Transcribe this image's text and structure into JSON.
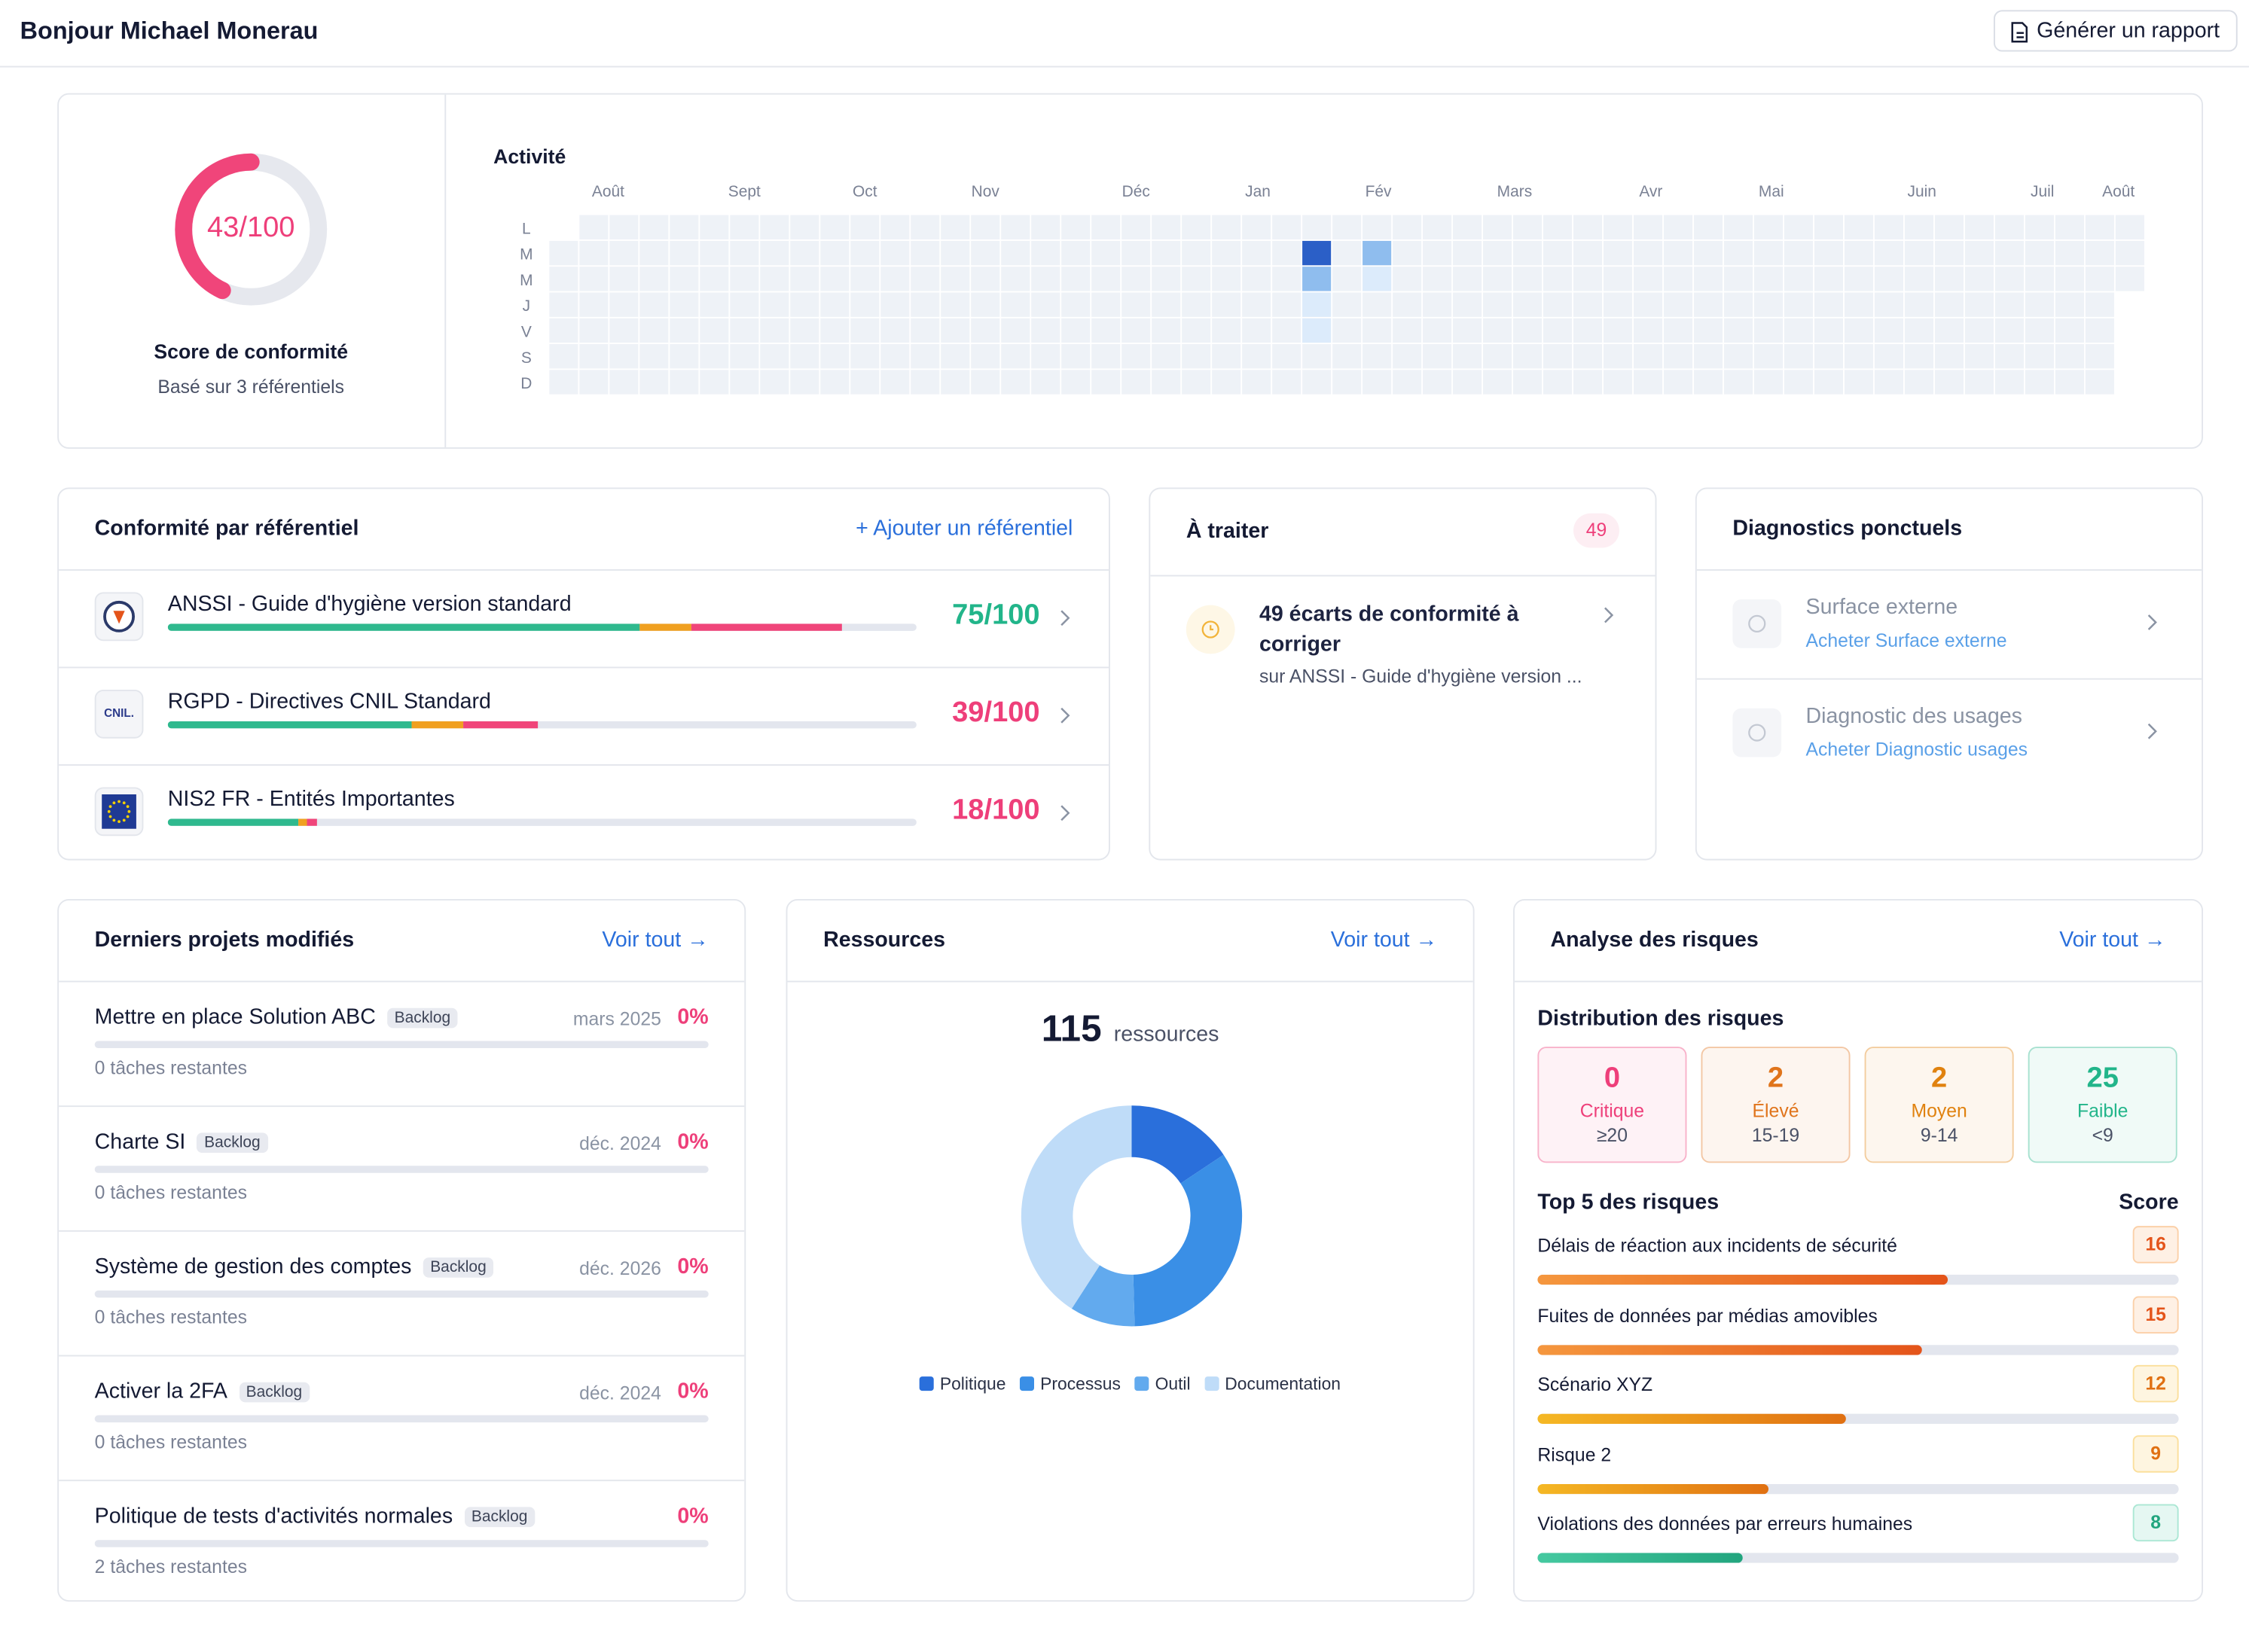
{
  "header": {
    "title": "Bonjour Michael Monerau",
    "button": "Générer un rapport"
  },
  "score": {
    "value": 43,
    "max": 100,
    "label": "43/100",
    "title": "Score de conformité",
    "subtitle": "Basé sur 3 référentiels"
  },
  "activity": {
    "title": "Activité",
    "months": [
      "Août",
      "Sept",
      "Oct",
      "Nov",
      "Déc",
      "Jan",
      "Fév",
      "Mars",
      "Avr",
      "Mai",
      "Juin",
      "Juil",
      "Août"
    ],
    "days": [
      "L",
      "M",
      "M",
      "J",
      "V",
      "S",
      "D"
    ],
    "level_colors": [
      "#eef2f7",
      "#dcebfb",
      "#8fbdee",
      "#5b95e0",
      "#2b5fc7"
    ],
    "cells": [
      {
        "week": 25,
        "day": 1,
        "level": 4
      },
      {
        "week": 25,
        "day": 2,
        "level": 2
      },
      {
        "week": 25,
        "day": 3,
        "level": 1
      },
      {
        "week": 25,
        "day": 4,
        "level": 1
      },
      {
        "week": 27,
        "day": 1,
        "level": 2
      },
      {
        "week": 27,
        "day": 2,
        "level": 1
      }
    ]
  },
  "referentiels": {
    "title": "Conformité par référentiel",
    "action": "+ Ajouter un référentiel",
    "segment_colors": [
      "#2fb98e",
      "#f0a020",
      "#f0457a"
    ],
    "items": [
      {
        "name": "ANSSI - Guide d'hygiène version standard",
        "score": 75,
        "score_label": "75/100",
        "color": "#22b58a",
        "segments": [
          63,
          7,
          20
        ]
      },
      {
        "name": "RGPD - Directives CNIL Standard",
        "logo": "CNIL.",
        "score": 39,
        "score_label": "39/100",
        "color": "#ee3f7a",
        "segments": [
          32.5,
          7,
          10
        ]
      },
      {
        "name": "NIS2 FR - Entités Importantes",
        "score": 18,
        "score_label": "18/100",
        "color": "#ee3f7a",
        "segments": [
          17.5,
          1,
          1.5
        ]
      }
    ]
  },
  "a_traiter": {
    "title": "À traiter",
    "count": 49,
    "item_title": "49 écarts de conformité à corriger",
    "item_subtitle": "sur ANSSI - Guide d'hygiène version ..."
  },
  "diagnostics": {
    "title": "Diagnostics ponctuels",
    "items": [
      {
        "name": "Surface externe",
        "link": "Acheter Surface externe"
      },
      {
        "name": "Diagnostic des usages",
        "link": "Acheter Diagnostic usages"
      }
    ]
  },
  "projects": {
    "title": "Derniers projets modifiés",
    "action": "Voir tout →",
    "items": [
      {
        "name": "Mettre en place Solution ABC",
        "status": "Backlog",
        "date": "mars 2025",
        "progress": 0,
        "progress_label": "0%",
        "remaining": "0 tâches restantes"
      },
      {
        "name": "Charte SI",
        "status": "Backlog",
        "date": "déc. 2024",
        "progress": 0,
        "progress_label": "0%",
        "remaining": "0 tâches restantes"
      },
      {
        "name": "Système de gestion des comptes",
        "status": "Backlog",
        "date": "déc. 2026",
        "progress": 0,
        "progress_label": "0%",
        "remaining": "0 tâches restantes"
      },
      {
        "name": "Activer la 2FA",
        "status": "Backlog",
        "date": "déc. 2024",
        "progress": 0,
        "progress_label": "0%",
        "remaining": "0 tâches restantes"
      },
      {
        "name": "Politique de tests d'activités normales",
        "status": "Backlog",
        "progress": 0,
        "progress_label": "0%",
        "remaining": "2 tâches restantes"
      }
    ]
  },
  "resources": {
    "title": "Ressources",
    "action": "Voir tout →",
    "total": 115,
    "unit": "ressources",
    "chart_data": {
      "type": "donut",
      "categories": [
        "Politique",
        "Processus",
        "Outil",
        "Documentation"
      ],
      "values": [
        18,
        39,
        11,
        47
      ],
      "colors": [
        "#2a6fdb",
        "#3a8fe6",
        "#62aaee",
        "#bfdcf8"
      ]
    }
  },
  "risks": {
    "title": "Analyse des risques",
    "action": "Voir tout →",
    "distribution_title": "Distribution des risques",
    "distribution": [
      {
        "value": 0,
        "label": "Critique",
        "range": "≥20",
        "color": "#ee3f7a"
      },
      {
        "value": 2,
        "label": "Élevé",
        "range": "15-19",
        "color": "#e0741b"
      },
      {
        "value": 2,
        "label": "Moyen",
        "range": "9-14",
        "color": "#e0820f"
      },
      {
        "value": 25,
        "label": "Faible",
        "range": "<9",
        "color": "#22b58a"
      }
    ],
    "top_title": "Top 5 des risques",
    "score_header": "Score",
    "xlim": [
      0,
      25
    ],
    "top": [
      {
        "name": "Délais de réaction aux incidents de sécurité",
        "score": 16,
        "color": [
          "#f5973e",
          "#e4541a"
        ]
      },
      {
        "name": "Fuites de données par médias amovibles",
        "score": 15,
        "color": [
          "#f5973e",
          "#e4541a"
        ]
      },
      {
        "name": "Scénario XYZ",
        "score": 12,
        "color": [
          "#f5b824",
          "#e07012"
        ]
      },
      {
        "name": "Risque 2",
        "score": 9,
        "color": [
          "#f5b824",
          "#e07012"
        ]
      },
      {
        "name": "Violations des données par erreurs humaines",
        "score": 8,
        "color": [
          "#45c9a0",
          "#22a57e"
        ]
      }
    ]
  }
}
